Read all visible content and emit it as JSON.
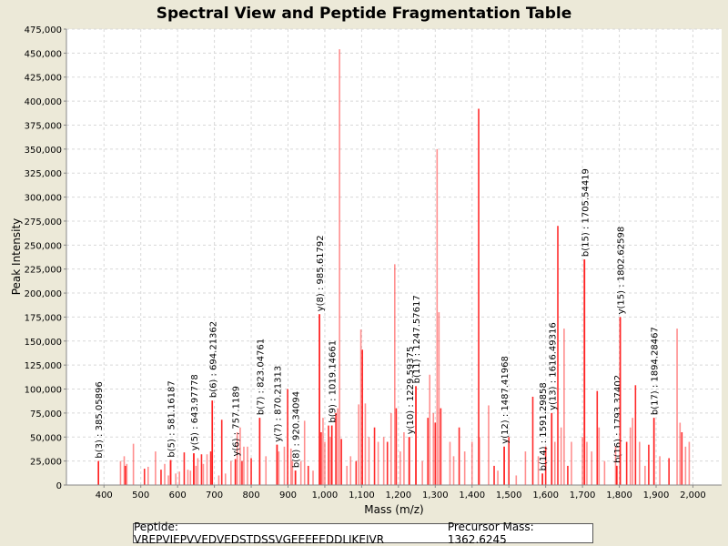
{
  "chart_data": {
    "type": "bar",
    "title": "Spectral View and Peptide Fragmentation Table",
    "xlabel": "Mass (m/z)",
    "ylabel": "Peak Intensity",
    "xlim": [
      298,
      2078
    ],
    "ylim": [
      0,
      475000
    ],
    "grid": true,
    "x_ticks": [
      400,
      500,
      600,
      700,
      800,
      900,
      1000,
      1100,
      1200,
      1300,
      1400,
      1500,
      1600,
      1700,
      1800,
      1900,
      2000
    ],
    "x_tick_labels": [
      "400",
      "500",
      "600",
      "700",
      "800",
      "900",
      "1,000",
      "1,100",
      "1,200",
      "1,300",
      "1,400",
      "1,500",
      "1,600",
      "1,700",
      "1,800",
      "1,900",
      "2,000"
    ],
    "y_ticks": [
      0,
      25000,
      50000,
      75000,
      100000,
      125000,
      150000,
      175000,
      200000,
      225000,
      250000,
      275000,
      300000,
      325000,
      350000,
      375000,
      400000,
      425000,
      450000,
      475000
    ],
    "y_tick_labels": [
      "0",
      "25,000",
      "50,000",
      "75,000",
      "100,000",
      "125,000",
      "150,000",
      "175,000",
      "200,000",
      "225,000",
      "250,000",
      "275,000",
      "300,000",
      "325,000",
      "350,000",
      "375,000",
      "400,000",
      "425,000",
      "450,000",
      "475,000"
    ],
    "peak_color": "#ff2020",
    "peaks": [
      [
        385,
        25000
      ],
      [
        445,
        25000
      ],
      [
        455,
        30000
      ],
      [
        458,
        20000
      ],
      [
        462,
        22000
      ],
      [
        480,
        43000
      ],
      [
        510,
        17000
      ],
      [
        520,
        19000
      ],
      [
        540,
        35000
      ],
      [
        555,
        16000
      ],
      [
        565,
        22000
      ],
      [
        575,
        10000
      ],
      [
        581,
        26000
      ],
      [
        595,
        12000
      ],
      [
        605,
        14000
      ],
      [
        618,
        34000
      ],
      [
        628,
        16000
      ],
      [
        635,
        15000
      ],
      [
        644,
        33000
      ],
      [
        650,
        20000
      ],
      [
        655,
        28000
      ],
      [
        665,
        32000
      ],
      [
        670,
        22000
      ],
      [
        680,
        32000
      ],
      [
        690,
        35000
      ],
      [
        694,
        88000
      ],
      [
        712,
        10000
      ],
      [
        720,
        68000
      ],
      [
        730,
        12000
      ],
      [
        745,
        25000
      ],
      [
        757,
        27000
      ],
      [
        762,
        55000
      ],
      [
        770,
        60000
      ],
      [
        775,
        25000
      ],
      [
        780,
        40000
      ],
      [
        790,
        40000
      ],
      [
        800,
        28000
      ],
      [
        823,
        70000
      ],
      [
        840,
        30000
      ],
      [
        870,
        42000
      ],
      [
        875,
        35000
      ],
      [
        890,
        40000
      ],
      [
        899,
        100000
      ],
      [
        908,
        38000
      ],
      [
        912,
        25000
      ],
      [
        920,
        15000
      ],
      [
        935,
        25000
      ],
      [
        945,
        67000
      ],
      [
        955,
        20000
      ],
      [
        968,
        15000
      ],
      [
        985,
        178000
      ],
      [
        990,
        55000
      ],
      [
        995,
        70000
      ],
      [
        1000,
        45000
      ],
      [
        1010,
        62000
      ],
      [
        1015,
        50000
      ],
      [
        1019,
        62000
      ],
      [
        1030,
        75000
      ],
      [
        1035,
        80000
      ],
      [
        1040,
        454000
      ],
      [
        1045,
        48000
      ],
      [
        1060,
        20000
      ],
      [
        1070,
        30000
      ],
      [
        1085,
        25000
      ],
      [
        1092,
        84000
      ],
      [
        1098,
        162000
      ],
      [
        1102,
        141000
      ],
      [
        1110,
        85000
      ],
      [
        1120,
        50000
      ],
      [
        1135,
        60000
      ],
      [
        1145,
        45000
      ],
      [
        1160,
        50000
      ],
      [
        1170,
        45000
      ],
      [
        1180,
        75000
      ],
      [
        1190,
        230000
      ],
      [
        1194,
        80000
      ],
      [
        1205,
        35000
      ],
      [
        1215,
        55000
      ],
      [
        1229,
        50000
      ],
      [
        1247,
        103000
      ],
      [
        1265,
        25000
      ],
      [
        1280,
        70000
      ],
      [
        1285,
        115000
      ],
      [
        1295,
        75000
      ],
      [
        1300,
        65000
      ],
      [
        1305,
        350000
      ],
      [
        1310,
        180000
      ],
      [
        1315,
        80000
      ],
      [
        1340,
        45000
      ],
      [
        1350,
        30000
      ],
      [
        1365,
        60000
      ],
      [
        1380,
        35000
      ],
      [
        1400,
        45000
      ],
      [
        1418,
        392000
      ],
      [
        1420,
        50000
      ],
      [
        1445,
        83000
      ],
      [
        1460,
        20000
      ],
      [
        1470,
        15000
      ],
      [
        1487,
        40000
      ],
      [
        1500,
        50000
      ],
      [
        1520,
        10000
      ],
      [
        1545,
        35000
      ],
      [
        1565,
        92000
      ],
      [
        1580,
        30000
      ],
      [
        1591,
        12000
      ],
      [
        1600,
        40000
      ],
      [
        1616,
        75000
      ],
      [
        1625,
        45000
      ],
      [
        1633,
        270000
      ],
      [
        1642,
        60000
      ],
      [
        1650,
        163000
      ],
      [
        1660,
        20000
      ],
      [
        1670,
        45000
      ],
      [
        1700,
        50000
      ],
      [
        1705,
        235000
      ],
      [
        1712,
        45000
      ],
      [
        1725,
        35000
      ],
      [
        1740,
        98000
      ],
      [
        1745,
        60000
      ],
      [
        1760,
        25000
      ],
      [
        1793,
        20000
      ],
      [
        1790,
        40000
      ],
      [
        1802,
        175000
      ],
      [
        1820,
        45000
      ],
      [
        1830,
        60000
      ],
      [
        1836,
        70000
      ],
      [
        1844,
        104000
      ],
      [
        1855,
        45000
      ],
      [
        1870,
        20000
      ],
      [
        1880,
        42000
      ],
      [
        1894,
        70000
      ],
      [
        1910,
        30000
      ],
      [
        1935,
        28000
      ],
      [
        1957,
        163000
      ],
      [
        1965,
        65000
      ],
      [
        1970,
        55000
      ],
      [
        1980,
        40000
      ],
      [
        1990,
        45000
      ]
    ],
    "annotations": [
      {
        "label": "b(3) : 385.05896",
        "mz": 385.05896,
        "intensity": 25000
      },
      {
        "label": "b(5) : 581.16187",
        "mz": 581.16187,
        "intensity": 26000
      },
      {
        "label": "y(5) : 643.97778",
        "mz": 643.97778,
        "intensity": 33000
      },
      {
        "label": "b(6) : 694.21362",
        "mz": 694.21362,
        "intensity": 88000
      },
      {
        "label": "y(6) : 757.1189",
        "mz": 757.1189,
        "intensity": 27000
      },
      {
        "label": "b(7) : 823.04761",
        "mz": 823.04761,
        "intensity": 70000
      },
      {
        "label": "y(7) : 870.21313",
        "mz": 870.21313,
        "intensity": 42000
      },
      {
        "label": "b(8) : 920.34094",
        "mz": 920.34094,
        "intensity": 15000
      },
      {
        "label": "y(8) : 985.61792",
        "mz": 985.61792,
        "intensity": 178000
      },
      {
        "label": "b(9) : 1019.14661",
        "mz": 1019.14661,
        "intensity": 62000
      },
      {
        "label": "y(10) : 1229.59375",
        "mz": 1229.59375,
        "intensity": 50000
      },
      {
        "label": "b(11) : 1247.57617",
        "mz": 1247.57617,
        "intensity": 103000
      },
      {
        "label": "y(12) : 1487.41968",
        "mz": 1487.41968,
        "intensity": 40000
      },
      {
        "label": "b(14) : 1591.29858",
        "mz": 1591.29858,
        "intensity": 12000
      },
      {
        "label": "y(13) : 1616.49316",
        "mz": 1616.49316,
        "intensity": 75000
      },
      {
        "label": "b(15) : 1705.54419",
        "mz": 1705.54419,
        "intensity": 235000
      },
      {
        "label": "b(16) : 1793.37402",
        "mz": 1793.37402,
        "intensity": 20000
      },
      {
        "label": "y(15) : 1802.62598",
        "mz": 1802.62598,
        "intensity": 175000
      },
      {
        "label": "b(17) : 1894.28467",
        "mz": 1894.28467,
        "intensity": 70000
      }
    ]
  },
  "legend": {
    "peptide": "Peptide: VREPVIEPVVEDVEDSTDSSVGEEEEEDDLIKEIVR",
    "precursor": "Precursor Mass: 1362.6245"
  }
}
